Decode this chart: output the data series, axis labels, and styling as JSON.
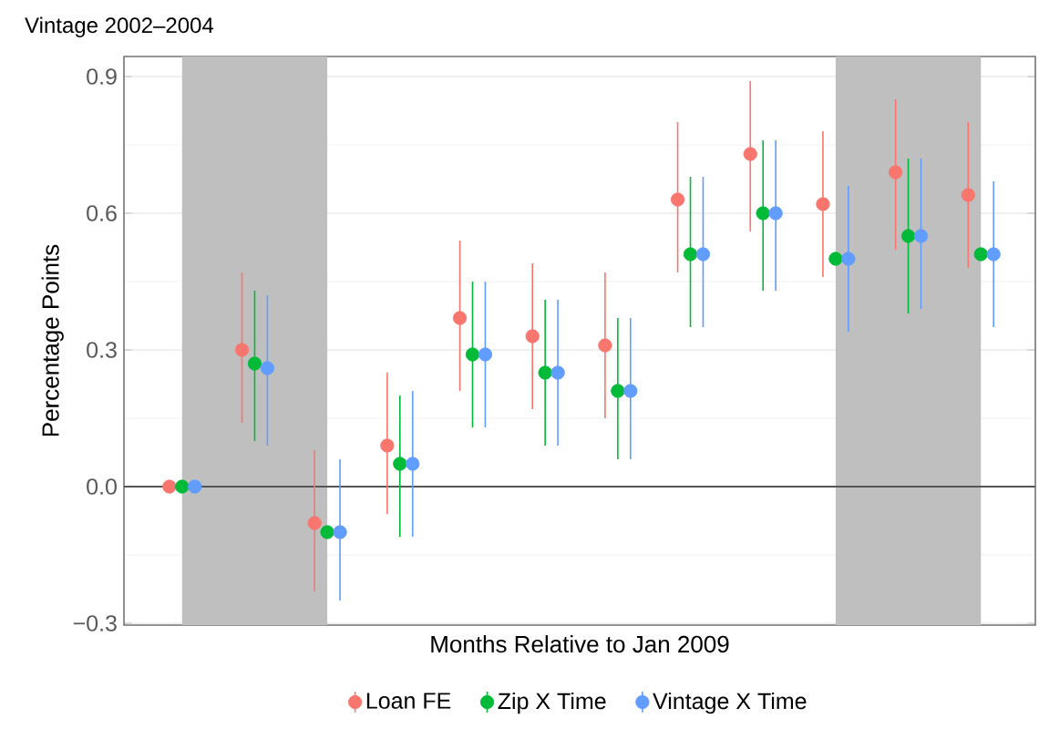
{
  "chart_data": {
    "type": "scatter",
    "title": "Vintage 2002–2004",
    "xlabel": "Months Relative to Jan 2009",
    "ylabel": "Percentage Points",
    "categories": [
      null,
      null,
      null,
      null,
      null,
      null,
      null,
      null,
      null,
      null,
      null,
      null
    ],
    "series": [
      {
        "name": "Loan FE",
        "color": "#f8766d",
        "values": [
          0,
          0.3,
          -0.08,
          0.09,
          0.37,
          0.33,
          0.31,
          0.63,
          0.73,
          0.62,
          0.69,
          0.64
        ],
        "errors": [
          null,
          [
            0.14,
            0.47
          ],
          [
            -0.23,
            0.08
          ],
          [
            -0.06,
            0.25
          ],
          [
            0.21,
            0.54
          ],
          [
            0.17,
            0.49
          ],
          [
            0.15,
            0.47
          ],
          [
            0.47,
            0.8
          ],
          [
            0.56,
            0.89
          ],
          [
            0.46,
            0.78
          ],
          [
            0.52,
            0.85
          ],
          [
            0.48,
            0.8
          ]
        ]
      },
      {
        "name": "Zip X Time",
        "color": "#00ba38",
        "values": [
          0,
          0.27,
          -0.1,
          0.05,
          0.29,
          0.25,
          0.21,
          0.51,
          0.6,
          0.5,
          0.55,
          0.51
        ],
        "errors": [
          null,
          [
            0.1,
            0.43
          ],
          null,
          [
            -0.11,
            0.2
          ],
          [
            0.13,
            0.45
          ],
          [
            0.09,
            0.41
          ],
          [
            0.06,
            0.37
          ],
          [
            0.35,
            0.68
          ],
          [
            0.43,
            0.76
          ],
          null,
          [
            0.38,
            0.72
          ],
          null
        ]
      },
      {
        "name": "Vintage X Time",
        "color": "#619cff",
        "values": [
          0,
          0.26,
          -0.1,
          0.05,
          0.29,
          0.25,
          0.21,
          0.51,
          0.6,
          0.5,
          0.55,
          0.51
        ],
        "errors": [
          null,
          [
            0.09,
            0.42
          ],
          [
            -0.25,
            0.06
          ],
          [
            -0.11,
            0.21
          ],
          [
            0.13,
            0.45
          ],
          [
            0.09,
            0.41
          ],
          [
            0.06,
            0.37
          ],
          [
            0.35,
            0.68
          ],
          [
            0.43,
            0.76
          ],
          [
            0.34,
            0.66
          ],
          [
            0.39,
            0.72
          ],
          [
            0.35,
            0.67
          ]
        ]
      }
    ],
    "ylim": [
      -0.304,
      0.944
    ],
    "yticks": [
      {
        "value": -0.3,
        "label": "−0.3"
      },
      {
        "value": 0,
        "label": "0.0"
      },
      {
        "value": 0.3,
        "label": "0.3"
      },
      {
        "value": 0.6,
        "label": "0.6"
      },
      {
        "value": 0.9,
        "label": "0.9"
      }
    ],
    "ref_lines": [
      {
        "axis": "y",
        "value": 0,
        "color": "#555555"
      }
    ],
    "grid": "y",
    "legend": "bottom",
    "marker": "circle",
    "tick_labels": "y"
  }
}
